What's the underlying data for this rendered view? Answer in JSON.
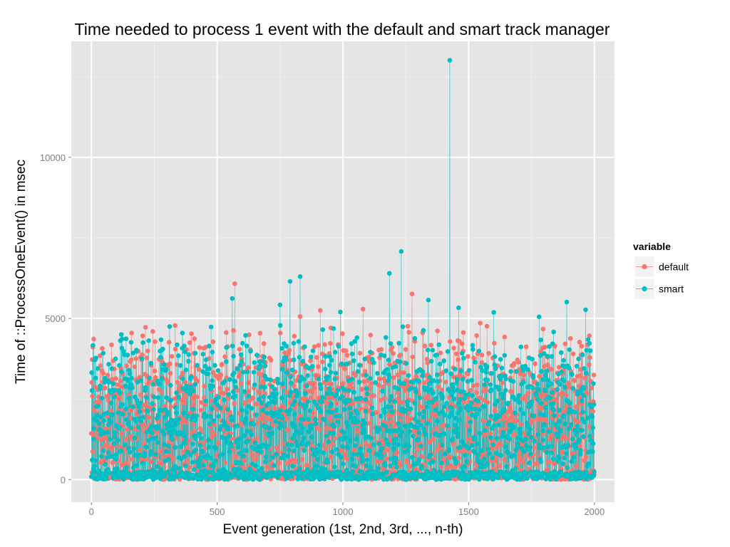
{
  "chart_data": {
    "type": "line",
    "title": "Time needed to process 1 event with the default and smart track manager",
    "xlabel": "Event generation (1st, 2nd, 3rd, ..., n-th)",
    "ylabel": "Time of ::ProcessOneEvent() in msec",
    "xlim": [
      -80,
      2080
    ],
    "ylim": [
      -700,
      13600
    ],
    "x_ticks": [
      0,
      500,
      1000,
      1500,
      2000
    ],
    "y_ticks": [
      0,
      5000,
      10000
    ],
    "legend": {
      "title": "variable",
      "placement": "right",
      "entries": [
        {
          "name": "default",
          "color": "#f8766d"
        },
        {
          "name": "smart",
          "color": "#00bfc4"
        }
      ]
    },
    "grid": true,
    "panel_background": "#e5e5e5",
    "n_points_per_series": 2000,
    "value_range_typical": [
      0,
      5000
    ],
    "series": [
      {
        "name": "default",
        "color": "#f8766d",
        "notable_points": [
          {
            "x": 570,
            "y": 6080
          },
          {
            "x": 830,
            "y": 5060
          },
          {
            "x": 1080,
            "y": 5290
          },
          {
            "x": 1275,
            "y": 5760
          },
          {
            "x": 910,
            "y": 5250
          }
        ]
      },
      {
        "name": "smart",
        "color": "#00bfc4",
        "notable_points": [
          {
            "x": 1425,
            "y": 13010
          },
          {
            "x": 1232,
            "y": 7080
          },
          {
            "x": 1185,
            "y": 6400
          },
          {
            "x": 830,
            "y": 6300
          },
          {
            "x": 790,
            "y": 6150
          },
          {
            "x": 560,
            "y": 5620
          },
          {
            "x": 750,
            "y": 5420
          },
          {
            "x": 1890,
            "y": 5510
          },
          {
            "x": 1340,
            "y": 5570
          },
          {
            "x": 990,
            "y": 5200
          },
          {
            "x": 1460,
            "y": 5330
          },
          {
            "x": 1965,
            "y": 5270
          },
          {
            "x": 1600,
            "y": 5190
          },
          {
            "x": 1780,
            "y": 5050
          }
        ]
      }
    ]
  }
}
